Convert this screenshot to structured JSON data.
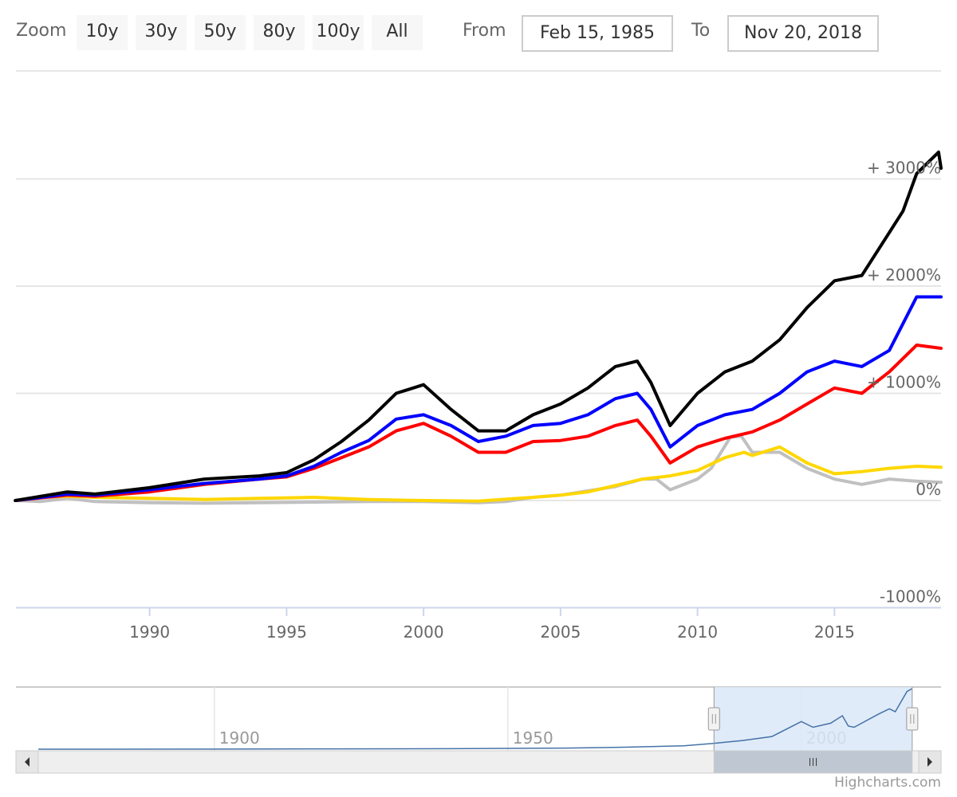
{
  "range_selector": {
    "zoom_label": "Zoom",
    "buttons": [
      "10y",
      "30y",
      "50y",
      "80y",
      "100y",
      "All"
    ],
    "from_label": "From",
    "from_value": "Feb 15, 1985",
    "to_label": "To",
    "to_value": "Nov 20, 2018"
  },
  "credits": "Highcharts.com",
  "colors": {
    "grid": "#e6e6e6",
    "navigator_fill": "#dbe8f8",
    "navigator_line": "#4572a7",
    "scrollbar": "#efefef"
  },
  "chart_data": {
    "type": "line",
    "xlim": [
      1985.12,
      2018.89
    ],
    "ylim": [
      -1000,
      3000
    ],
    "y_ticks": [
      {
        "value": -1000,
        "label": "-1000%"
      },
      {
        "value": 0,
        "label": "0%"
      },
      {
        "value": 1000,
        "label": "+ 1000%"
      },
      {
        "value": 2000,
        "label": "+ 2000%"
      },
      {
        "value": 3000,
        "label": "+ 3000%"
      }
    ],
    "x_ticks": [
      {
        "value": 1990,
        "label": "1990"
      },
      {
        "value": 1995,
        "label": "1995"
      },
      {
        "value": 2000,
        "label": "2000"
      },
      {
        "value": 2005,
        "label": "2005"
      },
      {
        "value": 2010,
        "label": "2010"
      },
      {
        "value": 2015,
        "label": "2015"
      }
    ],
    "grid": true,
    "series": [
      {
        "color": "#c0c0c0",
        "points": [
          [
            1985.1,
            0
          ],
          [
            1986,
            -10
          ],
          [
            1987,
            20
          ],
          [
            1988,
            -10
          ],
          [
            1990,
            -20
          ],
          [
            1992,
            -25
          ],
          [
            1994,
            -20
          ],
          [
            1996,
            -15
          ],
          [
            1998,
            -10
          ],
          [
            2000,
            -10
          ],
          [
            2002,
            -20
          ],
          [
            2003,
            -10
          ],
          [
            2004,
            30
          ],
          [
            2005,
            50
          ],
          [
            2006,
            90
          ],
          [
            2007,
            130
          ],
          [
            2008,
            200
          ],
          [
            2008.5,
            200
          ],
          [
            2009,
            100
          ],
          [
            2010,
            200
          ],
          [
            2010.5,
            300
          ],
          [
            2011.2,
            590
          ],
          [
            2011.6,
            600
          ],
          [
            2012,
            450
          ],
          [
            2013,
            450
          ],
          [
            2014,
            300
          ],
          [
            2015,
            200
          ],
          [
            2016,
            150
          ],
          [
            2017,
            200
          ],
          [
            2018,
            180
          ],
          [
            2018.89,
            170
          ]
        ]
      },
      {
        "color": "#ffd700",
        "points": [
          [
            1985.1,
            0
          ],
          [
            1986,
            30
          ],
          [
            1987,
            40
          ],
          [
            1988,
            30
          ],
          [
            1990,
            20
          ],
          [
            1992,
            10
          ],
          [
            1994,
            20
          ],
          [
            1996,
            30
          ],
          [
            1998,
            10
          ],
          [
            2000,
            0
          ],
          [
            2002,
            -5
          ],
          [
            2004,
            30
          ],
          [
            2005,
            50
          ],
          [
            2006,
            80
          ],
          [
            2007,
            140
          ],
          [
            2008,
            200
          ],
          [
            2009,
            230
          ],
          [
            2010,
            280
          ],
          [
            2011,
            400
          ],
          [
            2011.7,
            450
          ],
          [
            2012,
            420
          ],
          [
            2013,
            500
          ],
          [
            2014,
            350
          ],
          [
            2015,
            250
          ],
          [
            2016,
            270
          ],
          [
            2017,
            300
          ],
          [
            2018,
            320
          ],
          [
            2018.89,
            310
          ]
        ]
      },
      {
        "color": "#ff0000",
        "points": [
          [
            1985.1,
            0
          ],
          [
            1987,
            50
          ],
          [
            1988,
            40
          ],
          [
            1990,
            80
          ],
          [
            1992,
            150
          ],
          [
            1994,
            200
          ],
          [
            1995,
            220
          ],
          [
            1996,
            300
          ],
          [
            1997,
            400
          ],
          [
            1998,
            500
          ],
          [
            1999,
            650
          ],
          [
            2000,
            720
          ],
          [
            2001,
            600
          ],
          [
            2002,
            450
          ],
          [
            2003,
            450
          ],
          [
            2004,
            550
          ],
          [
            2005,
            560
          ],
          [
            2006,
            600
          ],
          [
            2007,
            700
          ],
          [
            2007.8,
            750
          ],
          [
            2008.3,
            600
          ],
          [
            2009,
            350
          ],
          [
            2010,
            500
          ],
          [
            2011,
            580
          ],
          [
            2012,
            640
          ],
          [
            2013,
            750
          ],
          [
            2014,
            900
          ],
          [
            2015,
            1050
          ],
          [
            2016,
            1000
          ],
          [
            2017,
            1200
          ],
          [
            2018,
            1450
          ],
          [
            2018.89,
            1420
          ]
        ]
      },
      {
        "color": "#0000ff",
        "points": [
          [
            1985.1,
            0
          ],
          [
            1987,
            60
          ],
          [
            1988,
            50
          ],
          [
            1990,
            100
          ],
          [
            1992,
            160
          ],
          [
            1994,
            200
          ],
          [
            1995,
            230
          ],
          [
            1996,
            320
          ],
          [
            1997,
            450
          ],
          [
            1998,
            560
          ],
          [
            1999,
            760
          ],
          [
            2000,
            800
          ],
          [
            2001,
            700
          ],
          [
            2002,
            550
          ],
          [
            2003,
            600
          ],
          [
            2004,
            700
          ],
          [
            2005,
            720
          ],
          [
            2006,
            800
          ],
          [
            2007,
            950
          ],
          [
            2007.8,
            1000
          ],
          [
            2008.3,
            850
          ],
          [
            2009,
            500
          ],
          [
            2010,
            700
          ],
          [
            2011,
            800
          ],
          [
            2012,
            850
          ],
          [
            2013,
            1000
          ],
          [
            2014,
            1200
          ],
          [
            2015,
            1300
          ],
          [
            2016,
            1250
          ],
          [
            2017,
            1400
          ],
          [
            2018,
            1900
          ],
          [
            2018.89,
            1900
          ]
        ]
      },
      {
        "color": "#000000",
        "points": [
          [
            1985.1,
            0
          ],
          [
            1987,
            80
          ],
          [
            1988,
            60
          ],
          [
            1990,
            120
          ],
          [
            1992,
            200
          ],
          [
            1994,
            230
          ],
          [
            1995,
            260
          ],
          [
            1996,
            380
          ],
          [
            1997,
            550
          ],
          [
            1998,
            750
          ],
          [
            1999,
            1000
          ],
          [
            2000,
            1080
          ],
          [
            2001,
            850
          ],
          [
            2002,
            650
          ],
          [
            2003,
            650
          ],
          [
            2004,
            800
          ],
          [
            2005,
            900
          ],
          [
            2006,
            1050
          ],
          [
            2007,
            1250
          ],
          [
            2007.8,
            1300
          ],
          [
            2008.3,
            1100
          ],
          [
            2009,
            700
          ],
          [
            2010,
            1000
          ],
          [
            2011,
            1200
          ],
          [
            2012,
            1300
          ],
          [
            2013,
            1500
          ],
          [
            2014,
            1800
          ],
          [
            2015,
            2050
          ],
          [
            2016,
            2100
          ],
          [
            2017,
            2500
          ],
          [
            2017.5,
            2700
          ],
          [
            2018,
            3050
          ],
          [
            2018.8,
            3250
          ],
          [
            2018.89,
            3100
          ]
        ]
      }
    ]
  },
  "navigator": {
    "x_ticks": [
      {
        "value": 1900,
        "label": "1900"
      },
      {
        "value": 1950,
        "label": "1950"
      },
      {
        "value": 2000,
        "label": "2000"
      }
    ],
    "xlim": [
      1870,
      2020
    ],
    "selected_range": [
      1985.12,
      2018.89
    ],
    "series_points": [
      [
        1870,
        0
      ],
      [
        1900,
        2
      ],
      [
        1920,
        5
      ],
      [
        1940,
        8
      ],
      [
        1960,
        20
      ],
      [
        1970,
        35
      ],
      [
        1980,
        60
      ],
      [
        1985,
        100
      ],
      [
        1990,
        150
      ],
      [
        1995,
        220
      ],
      [
        2000,
        480
      ],
      [
        2002,
        380
      ],
      [
        2005,
        450
      ],
      [
        2007,
        580
      ],
      [
        2008,
        400
      ],
      [
        2009,
        380
      ],
      [
        2013,
        600
      ],
      [
        2015,
        700
      ],
      [
        2016,
        650
      ],
      [
        2018,
        1000
      ],
      [
        2018.89,
        1050
      ]
    ],
    "series_max": 1050
  }
}
